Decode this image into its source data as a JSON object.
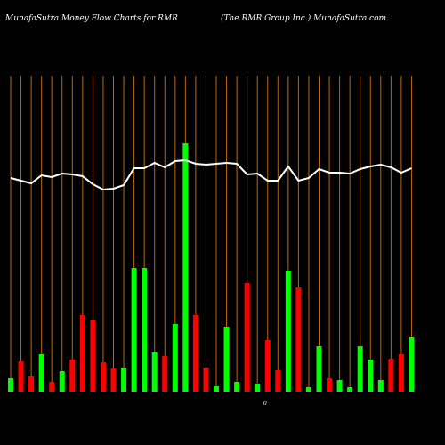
{
  "chart_data": {
    "type": "bar",
    "title": "MunafaSutra  Money Flow  Charts for RMR",
    "subtitle": "(The    RMR Group Inc.) MunafaSutra.com",
    "baseline_label": "0",
    "categories": [
      null,
      null,
      null,
      null,
      null,
      null,
      null,
      null,
      null,
      null,
      null,
      null,
      null,
      null,
      null,
      null,
      null,
      null,
      null,
      null,
      null,
      null,
      null,
      null,
      null,
      null,
      null,
      null,
      null,
      null,
      null,
      null,
      null,
      null,
      null,
      null,
      null,
      null,
      null,
      null
    ],
    "values": [
      15,
      34,
      17,
      42,
      11,
      23,
      36,
      86,
      80,
      33,
      26,
      27,
      139,
      139,
      44,
      40,
      76,
      279,
      86,
      27,
      6,
      73,
      11,
      122,
      9,
      58,
      24,
      136,
      117,
      5,
      51,
      15,
      13,
      5,
      51,
      36,
      13,
      37,
      42,
      61
    ],
    "bar_colors": [
      "#00ff00",
      "#ff0000",
      "#ff0000",
      "#00ff00",
      "#ff0000",
      "#00ff00",
      "#ff0000",
      "#ff0000",
      "#ff0000",
      "#ff0000",
      "#ff0000",
      "#00ff00",
      "#00ff00",
      "#00ff00",
      "#00ff00",
      "#ff0000",
      "#00ff00",
      "#00ff00",
      "#ff0000",
      "#ff0000",
      "#00ff00",
      "#00ff00",
      "#00ff00",
      "#ff0000",
      "#00ff00",
      "#ff0000",
      "#ff0000",
      "#00ff00",
      "#ff0000",
      "#00ff00",
      "#00ff00",
      "#ff0000",
      "#00ff00",
      "#00ff00",
      "#00ff00",
      "#00ff00",
      "#00ff00",
      "#ff0000",
      "#ff0000",
      "#00ff00"
    ],
    "line": {
      "color": "#ffffff",
      "values": [
        240,
        237,
        234,
        243,
        241,
        245,
        244,
        242,
        233,
        227,
        228,
        232,
        251,
        251,
        257,
        252,
        259,
        260,
        256,
        255,
        256,
        257,
        256,
        244,
        245,
        237,
        237,
        253,
        237,
        240,
        250,
        246,
        246,
        245,
        250,
        253,
        255,
        252,
        246,
        251
      ]
    },
    "ylim": [
      0,
      300
    ],
    "gridline_color": "#b8690e"
  }
}
